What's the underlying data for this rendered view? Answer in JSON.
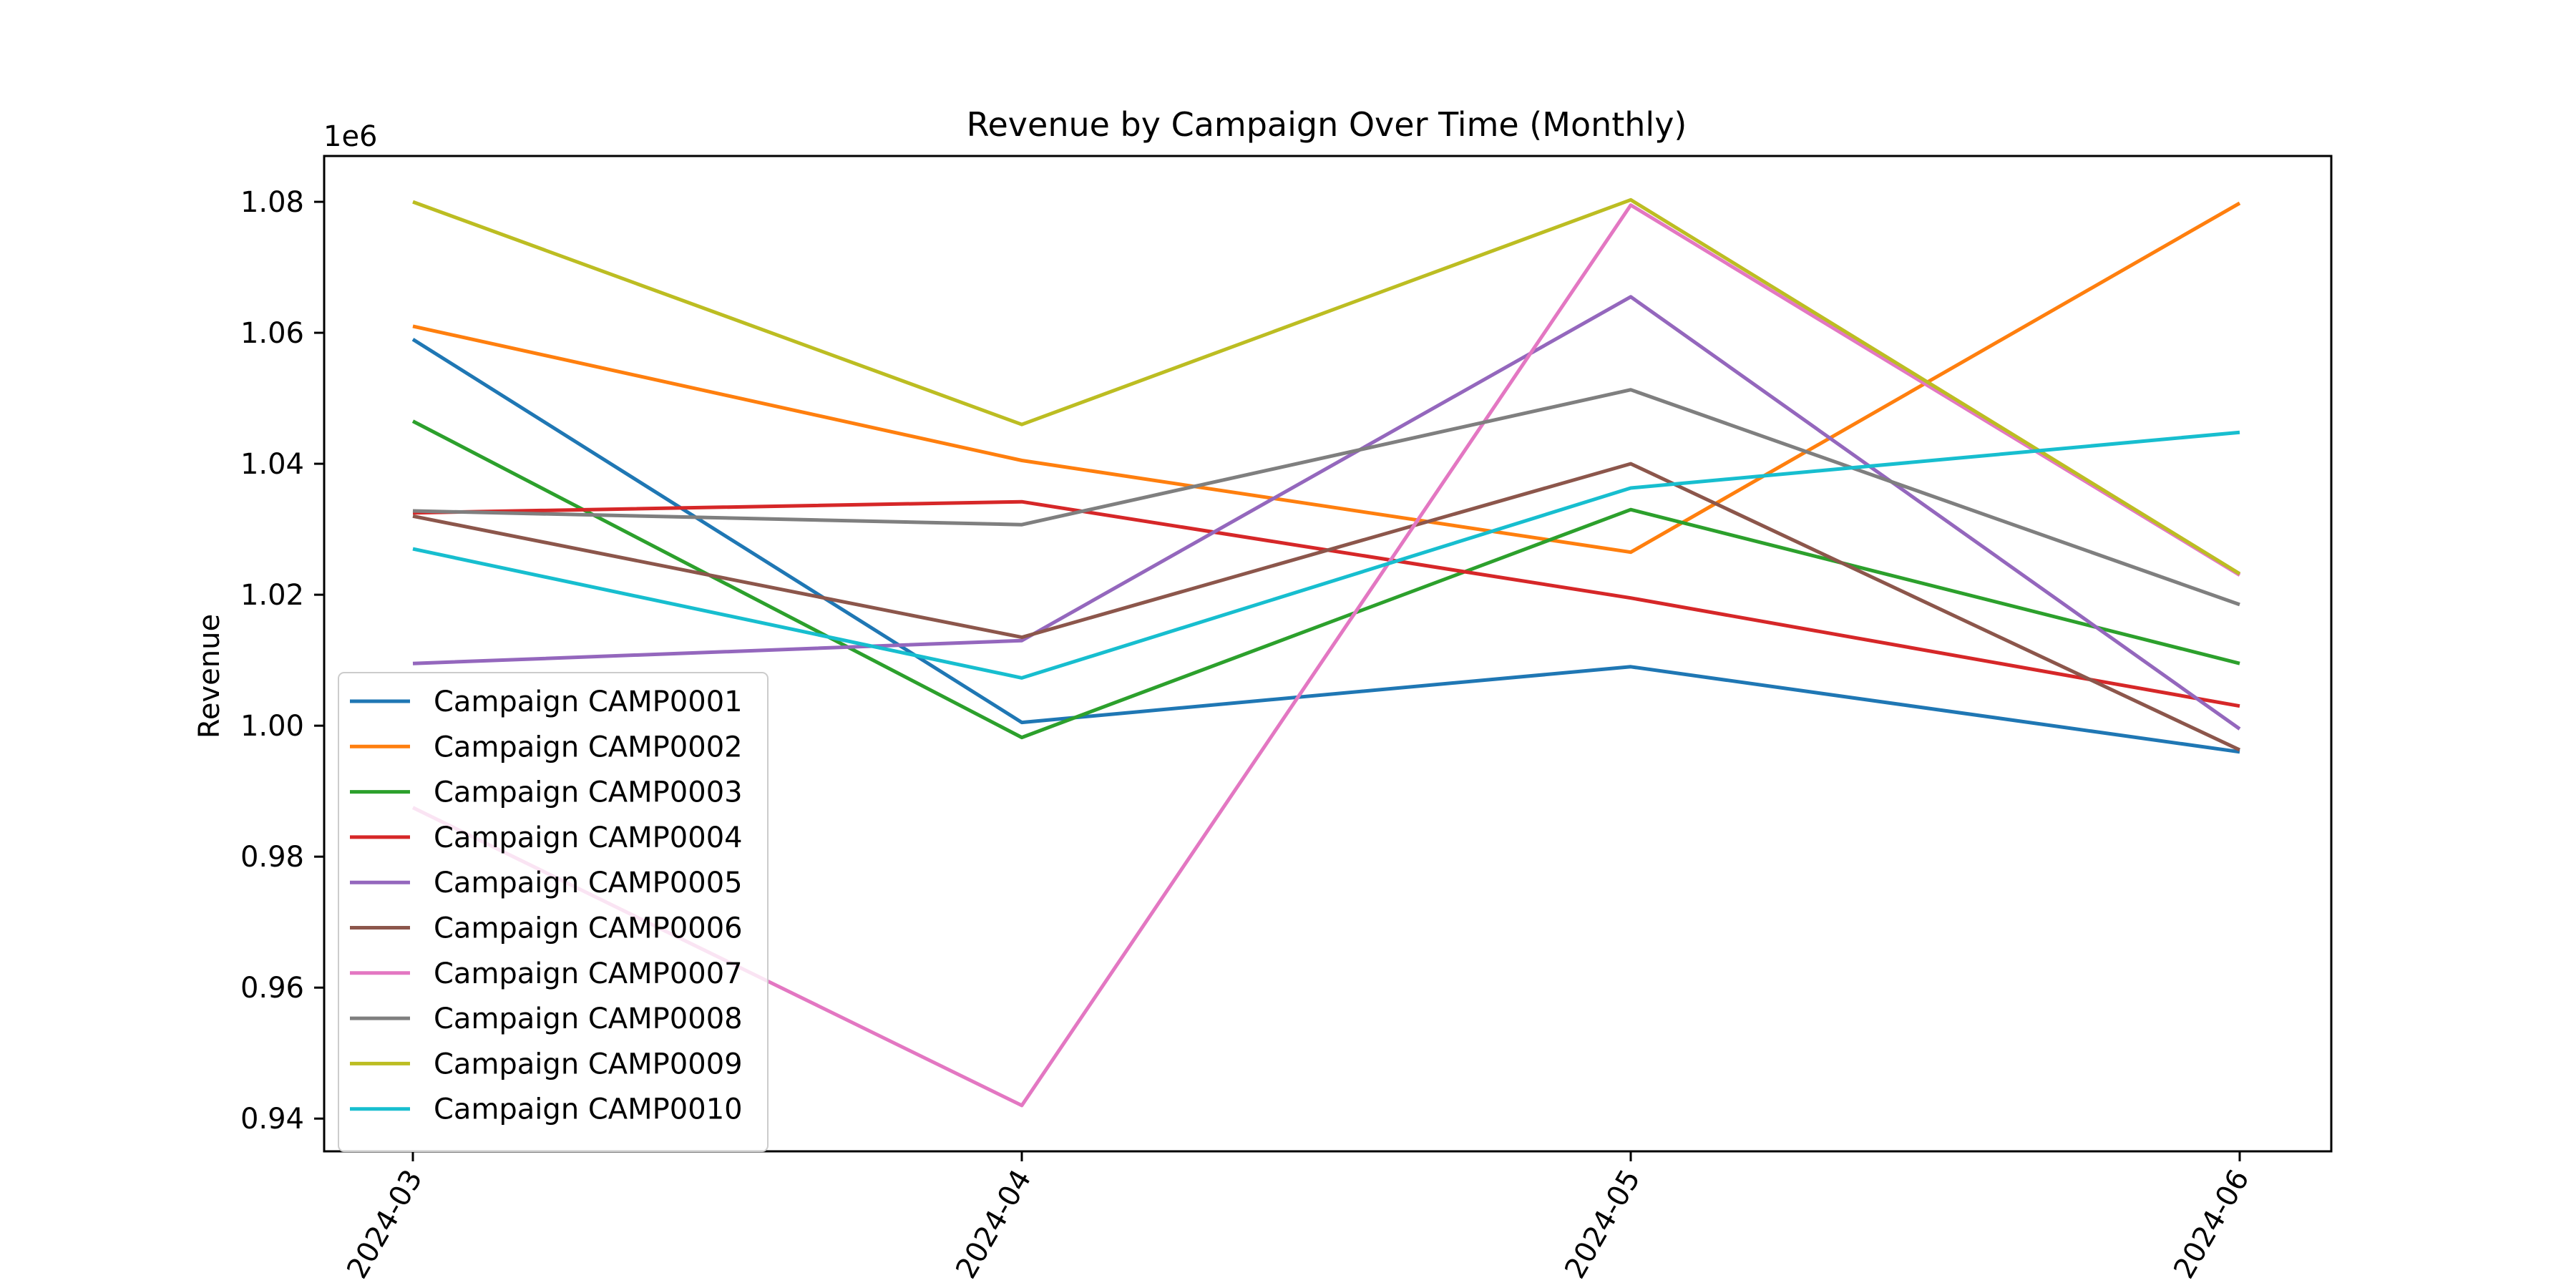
{
  "chart_data": {
    "type": "line",
    "title": "Revenue by Campaign Over Time (Monthly)",
    "xlabel": "",
    "ylabel": "Revenue",
    "y_offset_label": "1e6",
    "y_scale_factor": 1000000,
    "x": [
      "2024-03",
      "2024-04",
      "2024-05",
      "2024-06"
    ],
    "x_tick_rotation_deg": 60,
    "ylim": [
      935000,
      1087000
    ],
    "y_ticks": [
      940000,
      960000,
      980000,
      1000000,
      1020000,
      1040000,
      1060000,
      1080000
    ],
    "y_tick_labels": [
      "0.94",
      "0.96",
      "0.98",
      "1.00",
      "1.02",
      "1.04",
      "1.06",
      "1.08"
    ],
    "grid": false,
    "legend_position": "lower-left",
    "series": [
      {
        "name": "Campaign CAMP0001",
        "color": "#1f77b4",
        "values": [
          1059000,
          1000500,
          1009000,
          996000
        ]
      },
      {
        "name": "Campaign CAMP0002",
        "color": "#ff7f0e",
        "values": [
          1061000,
          1040500,
          1026500,
          1079800
        ]
      },
      {
        "name": "Campaign CAMP0003",
        "color": "#2ca02c",
        "values": [
          1046500,
          998200,
          1033000,
          1009500
        ]
      },
      {
        "name": "Campaign CAMP0004",
        "color": "#d62728",
        "values": [
          1032500,
          1034200,
          1019500,
          1003000
        ]
      },
      {
        "name": "Campaign CAMP0005",
        "color": "#9467bd",
        "values": [
          1009500,
          1013000,
          1065500,
          999500
        ]
      },
      {
        "name": "Campaign CAMP0006",
        "color": "#8c564b",
        "values": [
          1032000,
          1013500,
          1040000,
          996300
        ]
      },
      {
        "name": "Campaign CAMP0007",
        "color": "#e377c2",
        "values": [
          987500,
          942000,
          1079500,
          1023000
        ]
      },
      {
        "name": "Campaign CAMP0008",
        "color": "#7f7f7f",
        "values": [
          1032800,
          1030700,
          1051300,
          1018500
        ]
      },
      {
        "name": "Campaign CAMP0009",
        "color": "#bcbd22",
        "values": [
          1080000,
          1046000,
          1080300,
          1023200
        ]
      },
      {
        "name": "Campaign CAMP0010",
        "color": "#17becf",
        "values": [
          1027000,
          1007300,
          1036300,
          1044800
        ]
      }
    ]
  }
}
